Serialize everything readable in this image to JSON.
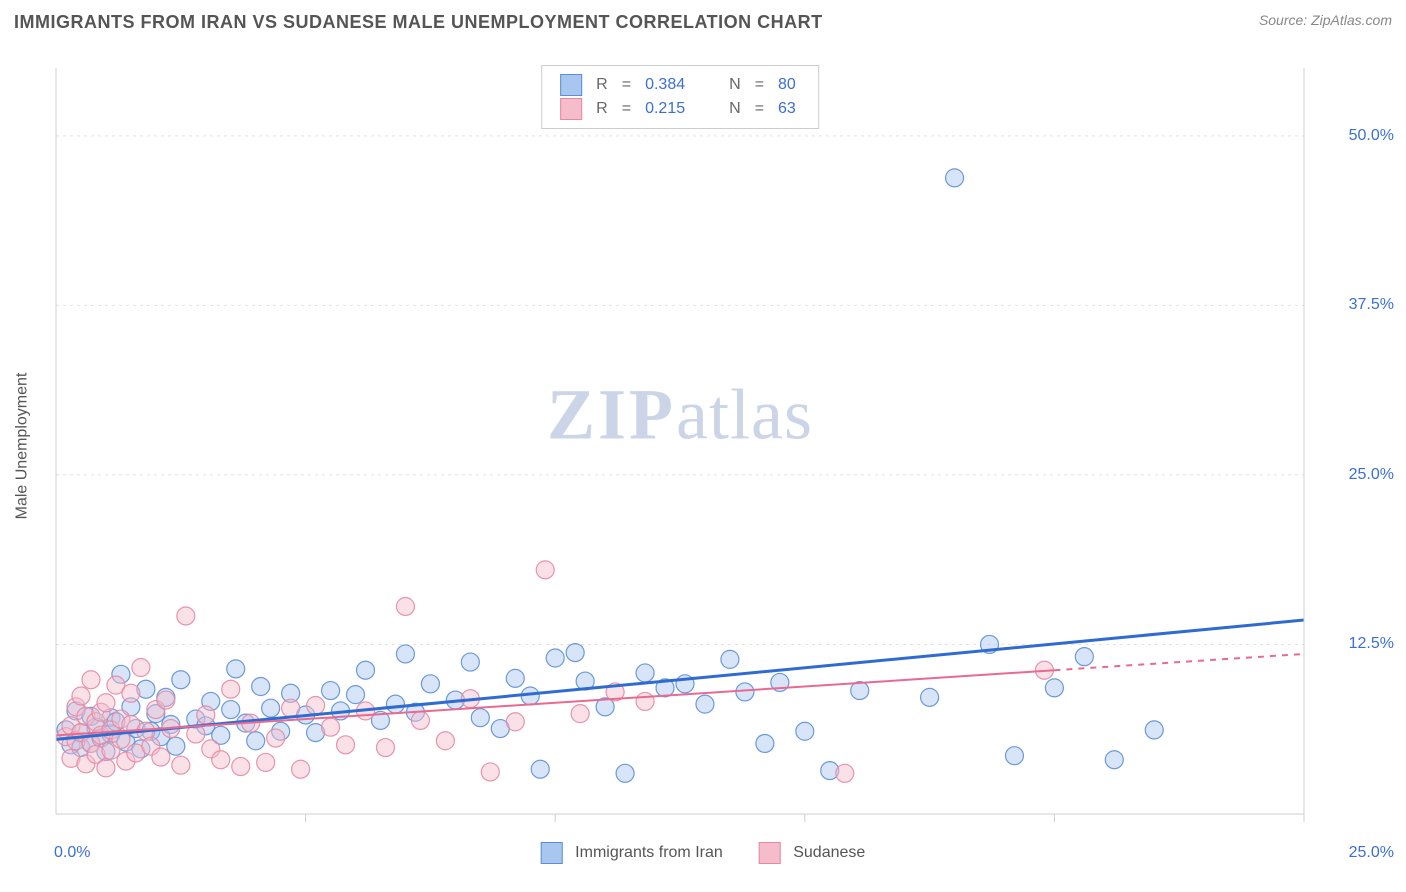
{
  "title": "IMMIGRANTS FROM IRAN VS SUDANESE MALE UNEMPLOYMENT CORRELATION CHART",
  "source": "Source: ZipAtlas.com",
  "y_axis_label": "Male Unemployment",
  "watermark": {
    "zip": "ZIP",
    "atlas": "atlas"
  },
  "chart": {
    "type": "scatter+regression",
    "background_color": "#ffffff",
    "grid_color": "#e2e2e2",
    "grid_dash": "3,4",
    "axis_color": "#cfcfcf",
    "xlim": [
      0,
      25
    ],
    "ylim": [
      0,
      55
    ],
    "x_ticks": [
      0,
      5,
      10,
      15,
      20,
      25
    ],
    "y_tick_labels": [
      {
        "v": 12.5,
        "label": "12.5%"
      },
      {
        "v": 25.0,
        "label": "25.0%"
      },
      {
        "v": 37.5,
        "label": "37.5%"
      },
      {
        "v": 50.0,
        "label": "50.0%"
      }
    ],
    "x_origin_label": "0.0%",
    "x_end_label": "25.0%",
    "marker_radius": 9,
    "marker_fill_opacity": 0.45,
    "marker_stroke_opacity": 0.9,
    "series": [
      {
        "id": "iran",
        "label": "Immigrants from Iran",
        "color_fill": "#a8c6ef",
        "color_stroke": "#5c8fd6",
        "line_color": "#2f6bd0",
        "line_width": 3,
        "R": "0.384",
        "N": "80",
        "trend": {
          "x1": 0,
          "y1": 5.5,
          "x2": 25,
          "y2": 14.3,
          "dash_from_x": null
        },
        "points": [
          [
            0.2,
            6.2
          ],
          [
            0.3,
            5.1
          ],
          [
            0.4,
            7.6
          ],
          [
            0.5,
            6.0
          ],
          [
            0.5,
            4.9
          ],
          [
            0.7,
            5.2
          ],
          [
            0.7,
            7.2
          ],
          [
            0.8,
            6.4
          ],
          [
            0.9,
            5.6
          ],
          [
            1.0,
            4.6
          ],
          [
            1.1,
            7.1
          ],
          [
            1.1,
            5.9
          ],
          [
            1.2,
            6.8
          ],
          [
            1.3,
            10.3
          ],
          [
            1.4,
            5.3
          ],
          [
            1.5,
            7.9
          ],
          [
            1.6,
            6.3
          ],
          [
            1.7,
            4.8
          ],
          [
            1.8,
            9.2
          ],
          [
            1.9,
            6.1
          ],
          [
            2.0,
            7.4
          ],
          [
            2.1,
            5.7
          ],
          [
            2.2,
            8.6
          ],
          [
            2.3,
            6.6
          ],
          [
            2.4,
            5.0
          ],
          [
            2.5,
            9.9
          ],
          [
            2.8,
            7.0
          ],
          [
            3.0,
            6.5
          ],
          [
            3.1,
            8.3
          ],
          [
            3.3,
            5.8
          ],
          [
            3.5,
            7.7
          ],
          [
            3.6,
            10.7
          ],
          [
            3.8,
            6.7
          ],
          [
            4.0,
            5.4
          ],
          [
            4.1,
            9.4
          ],
          [
            4.3,
            7.8
          ],
          [
            4.5,
            6.1
          ],
          [
            4.7,
            8.9
          ],
          [
            5.0,
            7.3
          ],
          [
            5.2,
            6.0
          ],
          [
            5.5,
            9.1
          ],
          [
            5.7,
            7.6
          ],
          [
            6.0,
            8.8
          ],
          [
            6.2,
            10.6
          ],
          [
            6.5,
            6.9
          ],
          [
            6.8,
            8.1
          ],
          [
            7.0,
            11.8
          ],
          [
            7.2,
            7.5
          ],
          [
            7.5,
            9.6
          ],
          [
            8.0,
            8.4
          ],
          [
            8.3,
            11.2
          ],
          [
            8.5,
            7.1
          ],
          [
            8.9,
            6.3
          ],
          [
            9.2,
            10.0
          ],
          [
            9.5,
            8.7
          ],
          [
            9.7,
            3.3
          ],
          [
            10.0,
            11.5
          ],
          [
            10.4,
            11.9
          ],
          [
            10.6,
            9.8
          ],
          [
            11.0,
            7.9
          ],
          [
            11.4,
            3.0
          ],
          [
            11.8,
            10.4
          ],
          [
            12.2,
            9.3
          ],
          [
            12.6,
            9.6
          ],
          [
            13.0,
            8.1
          ],
          [
            13.5,
            11.4
          ],
          [
            13.8,
            9.0
          ],
          [
            14.2,
            5.2
          ],
          [
            14.5,
            9.7
          ],
          [
            15.0,
            6.1
          ],
          [
            15.5,
            3.2
          ],
          [
            16.1,
            9.1
          ],
          [
            17.5,
            8.6
          ],
          [
            18.0,
            46.9
          ],
          [
            18.7,
            12.5
          ],
          [
            19.2,
            4.3
          ],
          [
            20.0,
            9.3
          ],
          [
            20.6,
            11.6
          ],
          [
            21.2,
            4.0
          ],
          [
            22.0,
            6.2
          ]
        ]
      },
      {
        "id": "sudanese",
        "label": "Sudanese",
        "color_fill": "#f5bccb",
        "color_stroke": "#e588a3",
        "line_color": "#e86a91",
        "line_width": 2,
        "R": "0.215",
        "N": "63",
        "trend": {
          "x1": 0,
          "y1": 5.8,
          "x2": 25,
          "y2": 11.8,
          "dash_from_x": 20
        },
        "points": [
          [
            0.2,
            5.7
          ],
          [
            0.3,
            6.5
          ],
          [
            0.3,
            4.1
          ],
          [
            0.4,
            7.9
          ],
          [
            0.4,
            5.4
          ],
          [
            0.5,
            8.7
          ],
          [
            0.5,
            6.0
          ],
          [
            0.6,
            3.7
          ],
          [
            0.6,
            7.2
          ],
          [
            0.7,
            5.2
          ],
          [
            0.7,
            9.9
          ],
          [
            0.8,
            6.8
          ],
          [
            0.8,
            4.4
          ],
          [
            0.9,
            7.5
          ],
          [
            0.9,
            5.8
          ],
          [
            1.0,
            3.4
          ],
          [
            1.0,
            8.2
          ],
          [
            1.1,
            6.2
          ],
          [
            1.1,
            4.7
          ],
          [
            1.2,
            9.5
          ],
          [
            1.3,
            5.5
          ],
          [
            1.3,
            7.0
          ],
          [
            1.4,
            3.9
          ],
          [
            1.5,
            6.6
          ],
          [
            1.5,
            8.9
          ],
          [
            1.6,
            4.5
          ],
          [
            1.7,
            10.8
          ],
          [
            1.8,
            6.1
          ],
          [
            1.9,
            5.0
          ],
          [
            2.0,
            7.7
          ],
          [
            2.1,
            4.2
          ],
          [
            2.2,
            8.4
          ],
          [
            2.3,
            6.3
          ],
          [
            2.5,
            3.6
          ],
          [
            2.6,
            14.6
          ],
          [
            2.8,
            5.9
          ],
          [
            3.0,
            7.3
          ],
          [
            3.1,
            4.8
          ],
          [
            3.3,
            4.0
          ],
          [
            3.5,
            9.2
          ],
          [
            3.7,
            3.5
          ],
          [
            3.9,
            6.7
          ],
          [
            4.2,
            3.8
          ],
          [
            4.4,
            5.6
          ],
          [
            4.7,
            7.8
          ],
          [
            4.9,
            3.3
          ],
          [
            5.2,
            8.0
          ],
          [
            5.5,
            6.4
          ],
          [
            5.8,
            5.1
          ],
          [
            6.2,
            7.6
          ],
          [
            6.6,
            4.9
          ],
          [
            7.0,
            15.3
          ],
          [
            7.3,
            6.9
          ],
          [
            7.8,
            5.4
          ],
          [
            8.3,
            8.5
          ],
          [
            8.7,
            3.1
          ],
          [
            9.2,
            6.8
          ],
          [
            9.8,
            18.0
          ],
          [
            10.5,
            7.4
          ],
          [
            11.2,
            9.0
          ],
          [
            11.8,
            8.3
          ],
          [
            15.8,
            3.0
          ],
          [
            19.8,
            10.6
          ]
        ]
      }
    ]
  },
  "legend_top": {
    "R_label": "R",
    "N_label": "N",
    "eq": "="
  }
}
